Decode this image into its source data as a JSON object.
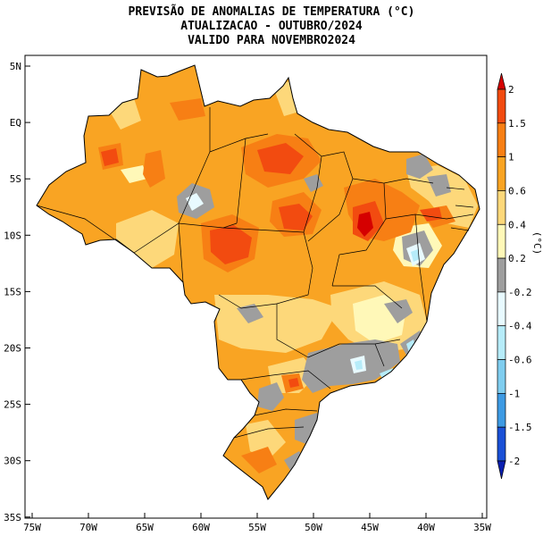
{
  "title": {
    "line1": "PREVISÃO DE ANOMALIAS DE TEMPERATURA (°C)",
    "line2": "ATUALIZACAO - OUTUBRO/2024",
    "line3": "VALIDO PARA NOVEMBRO2024"
  },
  "axes": {
    "lat_labels": [
      "5N",
      "EQ",
      "5S",
      "10S",
      "15S",
      "20S",
      "25S",
      "30S",
      "35S"
    ],
    "lon_labels": [
      "75W",
      "70W",
      "65W",
      "60W",
      "55W",
      "50W",
      "45W",
      "40W",
      "35W"
    ]
  },
  "colorbar": {
    "unit": "(°C)",
    "labels": [
      "2",
      "1.5",
      "1",
      "0.6",
      "0.4",
      "0.2",
      "-0.2",
      "-0.4",
      "-0.6",
      "-1",
      "-1.5",
      "-2"
    ],
    "colors": [
      "#d50000",
      "#f24b10",
      "#f77f14",
      "#f9a423",
      "#fdd87a",
      "#fff8b8",
      "#9e9e9e",
      "#e8faff",
      "#b6ecf9",
      "#7fcdef",
      "#3d9ae3",
      "#1a50d6",
      "#0a1fb0"
    ]
  },
  "colors": {
    "base": "#f9a423",
    "light": "#fdd87a",
    "pale": "#fff8b8",
    "neutral": "#9e9e9e",
    "warm": "#f77f14",
    "hot": "#f24b10",
    "hotter": "#d50000",
    "cool1": "#e8faff",
    "cool2": "#b6ecf9"
  }
}
